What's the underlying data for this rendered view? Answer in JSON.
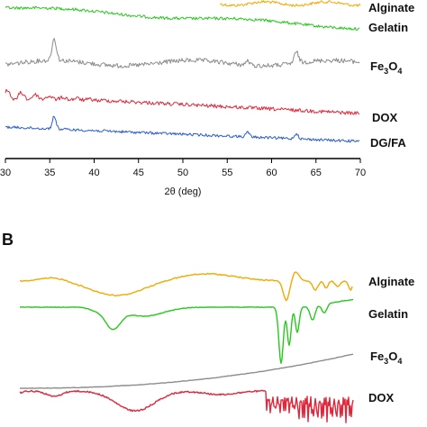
{
  "chart_data": [
    {
      "type": "line",
      "panel": "A",
      "xlabel": "2θ (deg)",
      "xlim": [
        30,
        70
      ],
      "xticks": [
        30,
        35,
        40,
        45,
        50,
        55,
        60,
        65,
        70
      ],
      "series": [
        {
          "name": "Alginate",
          "color": "#f2a900"
        },
        {
          "name": "Gelatin",
          "color": "#28c81e"
        },
        {
          "name": "Fe3O4",
          "color": "#8c8c8c",
          "peaks_2theta": [
            35.5,
            62.8
          ]
        },
        {
          "name": "DOX",
          "color": "#e0283c"
        },
        {
          "name": "DG/FA",
          "color": "#2a5ec8",
          "peaks_2theta": [
            35.5,
            57.3,
            62.8
          ]
        }
      ]
    },
    {
      "type": "line",
      "panel": "B",
      "series": [
        {
          "name": "Alginate",
          "color": "#f2a900"
        },
        {
          "name": "Gelatin",
          "color": "#28c81e"
        },
        {
          "name": "Fe3O4",
          "color": "#8c8c8c"
        },
        {
          "name": "DOX",
          "color": "#e0283c"
        }
      ]
    }
  ],
  "labels": {
    "panel_b": "B",
    "alginate": "Alginate",
    "gelatin": "Gelatin",
    "fe_base": "Fe",
    "fe_sub1": "3",
    "fe_mid": "O",
    "fe_sub2": "4",
    "dox": "DOX",
    "dgfa": "DG/FA",
    "xaxis": "2θ (deg)"
  }
}
